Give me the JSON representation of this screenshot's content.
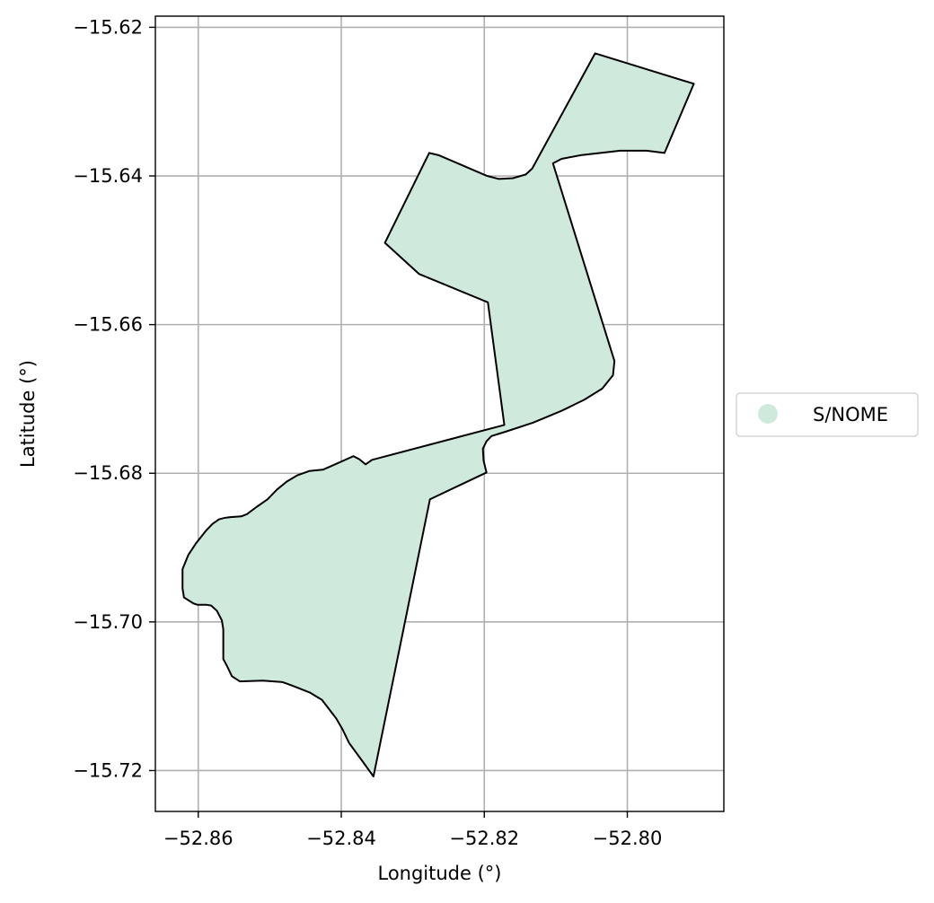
{
  "chart_data": {
    "type": "map",
    "xlabel": "Longitude (°)",
    "ylabel": "Latitude (°)",
    "xlim": [
      -52.866,
      -52.7865
    ],
    "ylim": [
      -15.7255,
      -15.6185
    ],
    "xticks": [
      -52.86,
      -52.84,
      -52.82,
      -52.8
    ],
    "yticks": [
      -15.62,
      -15.64,
      -15.66,
      -15.68,
      -15.7,
      -15.72
    ],
    "xtick_labels": [
      "−52.86",
      "−52.84",
      "−52.82",
      "−52.80"
    ],
    "ytick_labels": [
      "−15.62",
      "−15.64",
      "−15.66",
      "−15.68",
      "−15.70",
      "−15.72"
    ],
    "grid": true,
    "legend": {
      "placement": "center-right",
      "entries": [
        {
          "label": "S/NOME",
          "color": "#cfeadd"
        }
      ]
    },
    "polygon": {
      "name": "S/NOME",
      "fill": "#cfeadd",
      "edge": "#000000",
      "coordinates": [
        [
          -52.8045,
          -15.6235
        ],
        [
          -52.7907,
          -15.6276
        ],
        [
          -52.7948,
          -15.6369
        ],
        [
          -52.7973,
          -15.6366
        ],
        [
          -52.801,
          -15.6366
        ],
        [
          -52.8065,
          -15.6372
        ],
        [
          -52.8092,
          -15.6377
        ],
        [
          -52.8104,
          -15.6383
        ],
        [
          -52.8018,
          -15.6649
        ],
        [
          -52.802,
          -15.6668
        ],
        [
          -52.8035,
          -15.6686
        ],
        [
          -52.806,
          -15.6701
        ],
        [
          -52.8092,
          -15.6716
        ],
        [
          -52.8132,
          -15.6732
        ],
        [
          -52.817,
          -15.6744
        ],
        [
          -52.819,
          -15.675
        ],
        [
          -52.8197,
          -15.6757
        ],
        [
          -52.8202,
          -15.6767
        ],
        [
          -52.8201,
          -15.6783
        ],
        [
          -52.8197,
          -15.6799
        ],
        [
          -52.8276,
          -15.6835
        ],
        [
          -52.8355,
          -15.7208
        ],
        [
          -52.837,
          -15.7188
        ],
        [
          -52.8389,
          -15.7163
        ],
        [
          -52.8398,
          -15.7145
        ],
        [
          -52.8407,
          -15.713
        ],
        [
          -52.8427,
          -15.7105
        ],
        [
          -52.8444,
          -15.7095
        ],
        [
          -52.8465,
          -15.7087
        ],
        [
          -52.8482,
          -15.7081
        ],
        [
          -52.851,
          -15.7079
        ],
        [
          -52.8542,
          -15.708
        ],
        [
          -52.8553,
          -15.7073
        ],
        [
          -52.856,
          -15.7059
        ],
        [
          -52.8565,
          -15.705
        ],
        [
          -52.8565,
          -15.701
        ],
        [
          -52.8567,
          -15.6998
        ],
        [
          -52.8574,
          -15.6985
        ],
        [
          -52.8582,
          -15.6978
        ],
        [
          -52.8588,
          -15.6977
        ],
        [
          -52.8601,
          -15.6977
        ],
        [
          -52.8607,
          -15.6975
        ],
        [
          -52.862,
          -15.6967
        ],
        [
          -52.8622,
          -15.6955
        ],
        [
          -52.8622,
          -15.6929
        ],
        [
          -52.8614,
          -15.691
        ],
        [
          -52.8603,
          -15.6894
        ],
        [
          -52.8589,
          -15.6877
        ],
        [
          -52.858,
          -15.6868
        ],
        [
          -52.8571,
          -15.6862
        ],
        [
          -52.8563,
          -15.686
        ],
        [
          -52.8555,
          -15.6859
        ],
        [
          -52.854,
          -15.6858
        ],
        [
          -52.8532,
          -15.6855
        ],
        [
          -52.8518,
          -15.6845
        ],
        [
          -52.8503,
          -15.6835
        ],
        [
          -52.849,
          -15.6822
        ],
        [
          -52.8476,
          -15.6811
        ],
        [
          -52.8462,
          -15.6803
        ],
        [
          -52.8445,
          -15.6797
        ],
        [
          -52.8425,
          -15.6795
        ],
        [
          -52.8383,
          -15.6777
        ],
        [
          -52.8375,
          -15.6781
        ],
        [
          -52.8366,
          -15.6788
        ],
        [
          -52.8357,
          -15.6782
        ],
        [
          -52.8172,
          -15.6735
        ],
        [
          -52.8195,
          -15.657
        ],
        [
          -52.8291,
          -15.6532
        ],
        [
          -52.8339,
          -15.649
        ],
        [
          -52.8277,
          -15.6369
        ],
        [
          -52.8264,
          -15.6372
        ],
        [
          -52.8196,
          -15.64
        ],
        [
          -52.818,
          -15.6404
        ],
        [
          -52.816,
          -15.6403
        ],
        [
          -52.8142,
          -15.6398
        ],
        [
          -52.8133,
          -15.639
        ],
        [
          -52.8045,
          -15.6235
        ]
      ]
    }
  }
}
